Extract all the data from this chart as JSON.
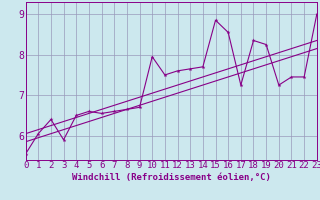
{
  "xlabel": "Windchill (Refroidissement éolien,°C)",
  "bg_color": "#cce8ee",
  "grid_color": "#9999bb",
  "line_color": "#880088",
  "spine_color": "#880088",
  "xmin": 0,
  "xmax": 23,
  "ymin": 5.4,
  "ymax": 9.3,
  "yticks": [
    6,
    7,
    8,
    9
  ],
  "xticks": [
    0,
    1,
    2,
    3,
    4,
    5,
    6,
    7,
    8,
    9,
    10,
    11,
    12,
    13,
    14,
    15,
    16,
    17,
    18,
    19,
    20,
    21,
    22,
    23
  ],
  "data_x": [
    0,
    1,
    2,
    3,
    4,
    5,
    6,
    7,
    8,
    9,
    10,
    11,
    12,
    13,
    14,
    15,
    16,
    17,
    18,
    19,
    20,
    21,
    22,
    23
  ],
  "data_y": [
    5.55,
    6.05,
    6.4,
    5.9,
    6.5,
    6.6,
    6.55,
    6.6,
    6.65,
    6.7,
    7.95,
    7.5,
    7.6,
    7.65,
    7.7,
    8.85,
    8.55,
    7.25,
    8.35,
    8.25,
    7.25,
    7.45,
    7.45,
    9.0
  ],
  "trend1_x": [
    0,
    23
  ],
  "trend1_y": [
    5.85,
    8.15
  ],
  "trend2_x": [
    0,
    23
  ],
  "trend2_y": [
    6.05,
    8.35
  ],
  "font_size": 6.5
}
